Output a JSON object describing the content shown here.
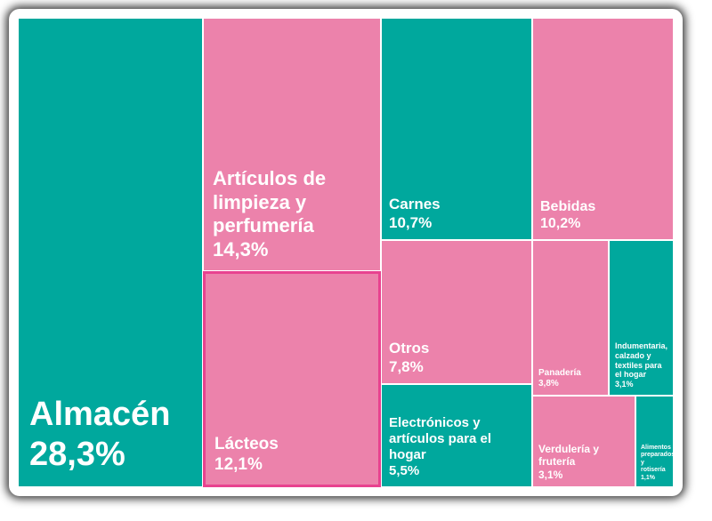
{
  "chart_data": {
    "type": "treemap",
    "categories": [
      "Almacén",
      "Artículos de limpieza y perfumería",
      "Lácteos",
      "Carnes",
      "Otros",
      "Electrónicos y artículos para el hogar",
      "Bebidas",
      "Panadería",
      "Indumentaria, calzado y textiles para el hogar",
      "Verdulería y frutería",
      "Alimentos preparados y rotisería"
    ],
    "values": [
      28.3,
      14.3,
      12.1,
      10.7,
      7.8,
      5.5,
      10.2,
      3.8,
      3.1,
      3.1,
      1.1
    ],
    "value_labels": [
      "28,3%",
      "14,3%",
      "12,1%",
      "10,7%",
      "7,8%",
      "5,5%",
      "10,2%",
      "3,8%",
      "3,1%",
      "3,1%",
      "1,1%"
    ],
    "colors": [
      "#00a89d",
      "#ec82ab",
      "#ec82ab",
      "#00a89d",
      "#ec82ab",
      "#00a89d",
      "#ec82ab",
      "#ec82ab",
      "#00a89d",
      "#ec82ab",
      "#00a89d"
    ]
  }
}
